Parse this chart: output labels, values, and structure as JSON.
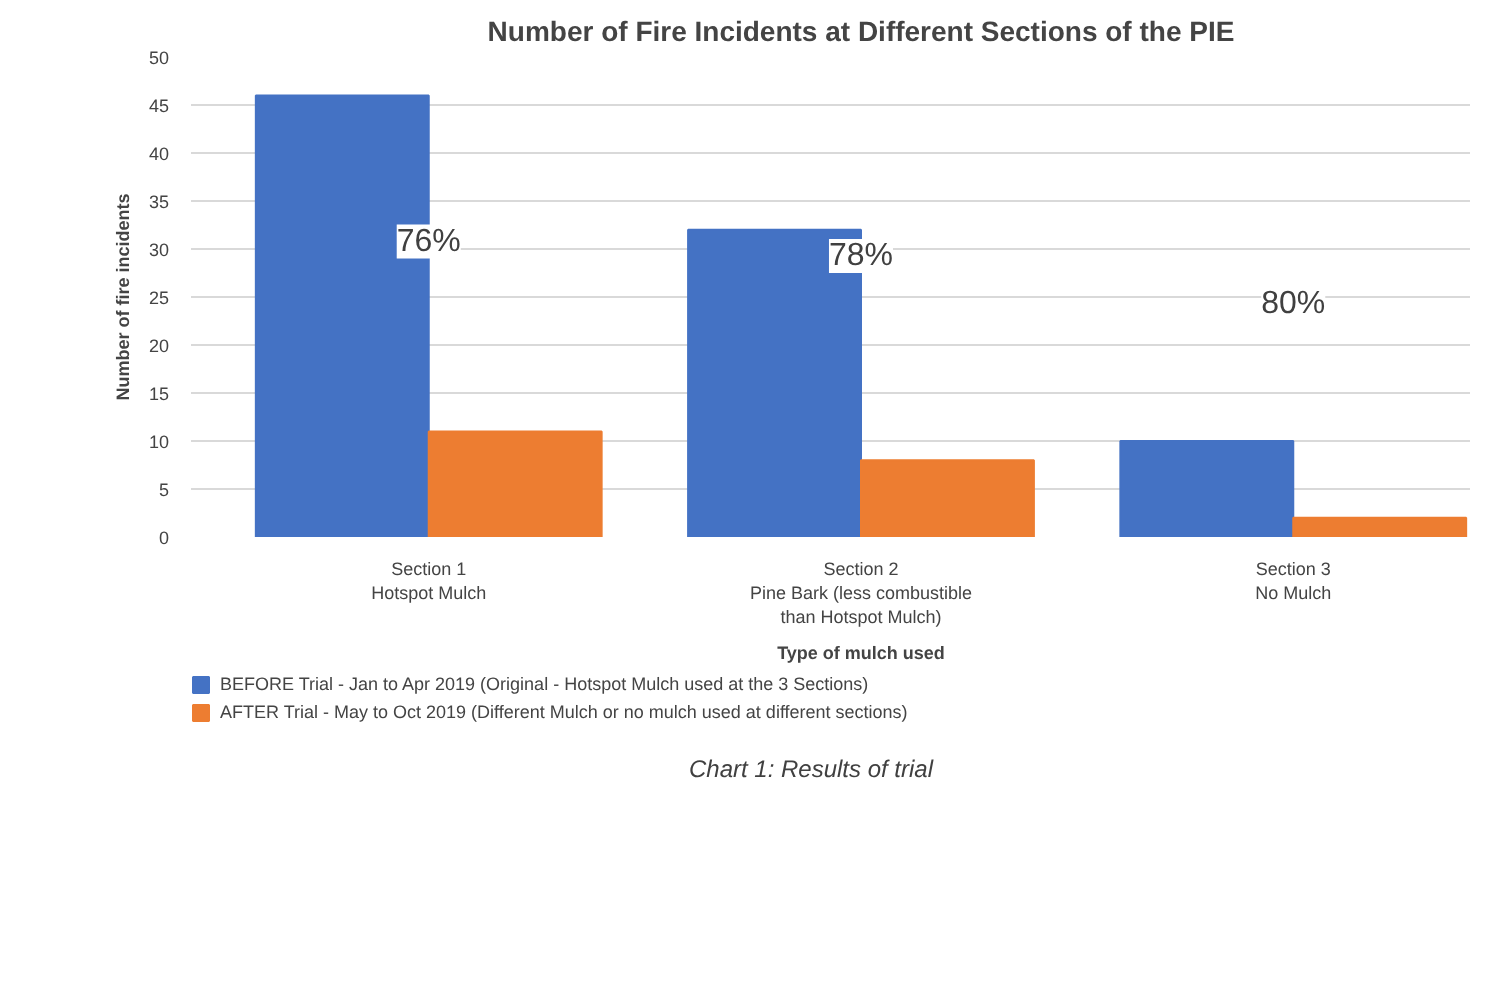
{
  "chart_data": {
    "type": "bar",
    "title": "Number of Fire Incidents at Different Sections of the PIE",
    "xlabel": "Type of mulch used",
    "ylabel": "Number of fire incidents",
    "categories": [
      "Section 1\nHotspot Mulch",
      "Section 2\nPine Bark (less combustible\nthan Hotspot Mulch)",
      "Section 3\nNo Mulch"
    ],
    "series": [
      {
        "name": "BEFORE Trial - Jan to Apr 2019 (Original - Hotspot Mulch used at the 3 Sections)",
        "color": "#4472c4",
        "values": [
          46,
          32,
          10
        ]
      },
      {
        "name": "AFTER Trial - May to Oct 2019 (Different Mulch or no mulch used at different sections)",
        "color": "#ed7d31",
        "values": [
          11,
          8,
          2
        ]
      }
    ],
    "ylim": [
      0,
      50
    ],
    "yticks": [
      0,
      5,
      10,
      15,
      20,
      25,
      30,
      35,
      40,
      45,
      50
    ],
    "grid": "y",
    "legend": "bottom",
    "annotations": [
      "76%",
      "78%",
      "80%",
      "Chart 1: Results of trial"
    ]
  }
}
